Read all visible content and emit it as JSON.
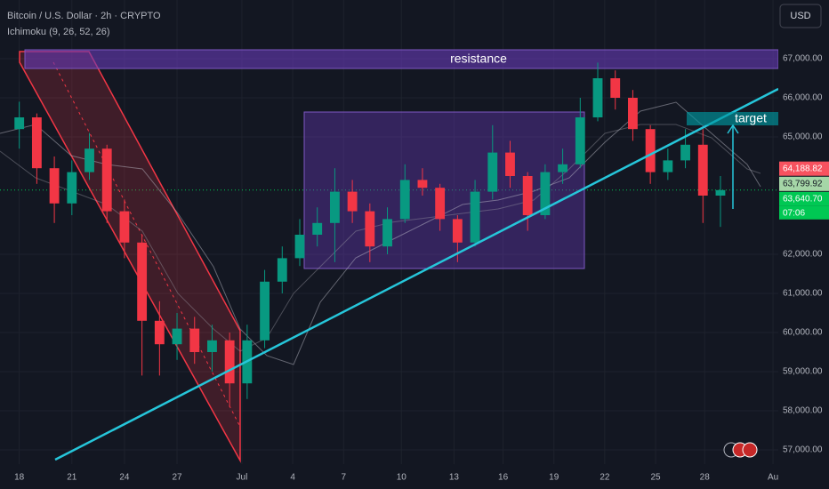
{
  "header": {
    "symbol": "Bitcoin / U.S. Dollar · 2h · CRYPTO",
    "indicator": "Ichimoku (9, 26, 52, 26)",
    "currency_button": "USD"
  },
  "chart_data": {
    "type": "candlestick",
    "up_color": "#089981",
    "down_color": "#f23645",
    "x": [
      0,
      1,
      2,
      3,
      4,
      5,
      6,
      7,
      8,
      9,
      10,
      11,
      12,
      13,
      14,
      15,
      16,
      17,
      18,
      19,
      20,
      21,
      22,
      23,
      24,
      25,
      26,
      27,
      28,
      29,
      30,
      31,
      32,
      33,
      34,
      35,
      36,
      37,
      38,
      39,
      40
    ],
    "open": [
      65200,
      65500,
      64200,
      63300,
      64100,
      64700,
      63100,
      62300,
      60300,
      59700,
      60100,
      59500,
      59800,
      58700,
      59800,
      61300,
      61900,
      62500,
      62800,
      63600,
      63100,
      62200,
      62900,
      63900,
      63700,
      62900,
      62300,
      63600,
      64600,
      64000,
      63000,
      64100,
      64300,
      65500,
      66500,
      66000,
      65200,
      64100,
      64400,
      64800,
      63500
    ],
    "high": [
      65900,
      65600,
      64500,
      64400,
      65100,
      64800,
      63400,
      62500,
      60800,
      60500,
      60400,
      60200,
      60000,
      60200,
      61600,
      62200,
      62900,
      63200,
      64200,
      63900,
      63300,
      63200,
      64300,
      64200,
      63800,
      63000,
      63900,
      65300,
      64900,
      64100,
      64300,
      64700,
      66000,
      66900,
      66700,
      66200,
      65300,
      64700,
      65200,
      65200,
      64000
    ],
    "low": [
      64700,
      63800,
      62800,
      63000,
      63900,
      62800,
      61900,
      58900,
      58900,
      59300,
      59200,
      59000,
      58100,
      58300,
      59600,
      61000,
      61700,
      62200,
      61800,
      62800,
      61800,
      62000,
      62800,
      63500,
      62600,
      61800,
      62200,
      63400,
      63700,
      62600,
      62900,
      63800,
      64200,
      65400,
      65700,
      64900,
      63800,
      63900,
      64200,
      62800,
      62700
    ],
    "close": [
      65500,
      64200,
      63300,
      64100,
      64700,
      63100,
      62300,
      60300,
      59700,
      60100,
      59500,
      59800,
      58700,
      59800,
      61300,
      61900,
      62500,
      62800,
      63600,
      63100,
      62200,
      62900,
      63900,
      63700,
      62900,
      62300,
      63600,
      64600,
      64000,
      63000,
      64100,
      64300,
      65500,
      66500,
      66000,
      65200,
      64100,
      64400,
      64800,
      63500,
      63640
    ],
    "xlim": [
      -1.1,
      43.3
    ],
    "xticks": [
      {
        "value": 0,
        "label": "18"
      },
      {
        "value": 3,
        "label": "21"
      },
      {
        "value": 6,
        "label": "24"
      },
      {
        "value": 9,
        "label": "27"
      },
      {
        "value": 12.7,
        "label": "Jul"
      },
      {
        "value": 15.6,
        "label": "4"
      },
      {
        "value": 18.5,
        "label": "7"
      },
      {
        "value": 21.8,
        "label": "10"
      },
      {
        "value": 24.8,
        "label": "13"
      },
      {
        "value": 27.6,
        "label": "16"
      },
      {
        "value": 30.5,
        "label": "19"
      },
      {
        "value": 33.4,
        "label": "22"
      },
      {
        "value": 36.3,
        "label": "25"
      },
      {
        "value": 39.1,
        "label": "28"
      },
      {
        "value": 43,
        "label": "Au"
      }
    ],
    "ylim": [
      56568,
      68500
    ],
    "yticks": [
      {
        "value": 67000,
        "label": "67,000.00"
      },
      {
        "value": 66000,
        "label": "66,000.00"
      },
      {
        "value": 65000,
        "label": "65,000.00"
      },
      {
        "value": 62000,
        "label": "62,000.00"
      },
      {
        "value": 61000,
        "label": "61,000.00"
      },
      {
        "value": 60000,
        "label": "60,000.00"
      },
      {
        "value": 59000,
        "label": "59,000.00"
      },
      {
        "value": 58000,
        "label": "58,000.00"
      },
      {
        "value": 57000,
        "label": "57,000.00"
      }
    ],
    "price_labels": [
      {
        "value": 64188.82,
        "label": "64,188.82",
        "color": "#f7525f"
      },
      {
        "value": 63799.92,
        "label": "63,799.92",
        "color": "#a5d6a7"
      },
      {
        "value": 63640.7,
        "label": "63,640.70",
        "color": "#00c853"
      }
    ],
    "countdown": "07:06",
    "annotations": [
      "resistance",
      "target"
    ]
  }
}
